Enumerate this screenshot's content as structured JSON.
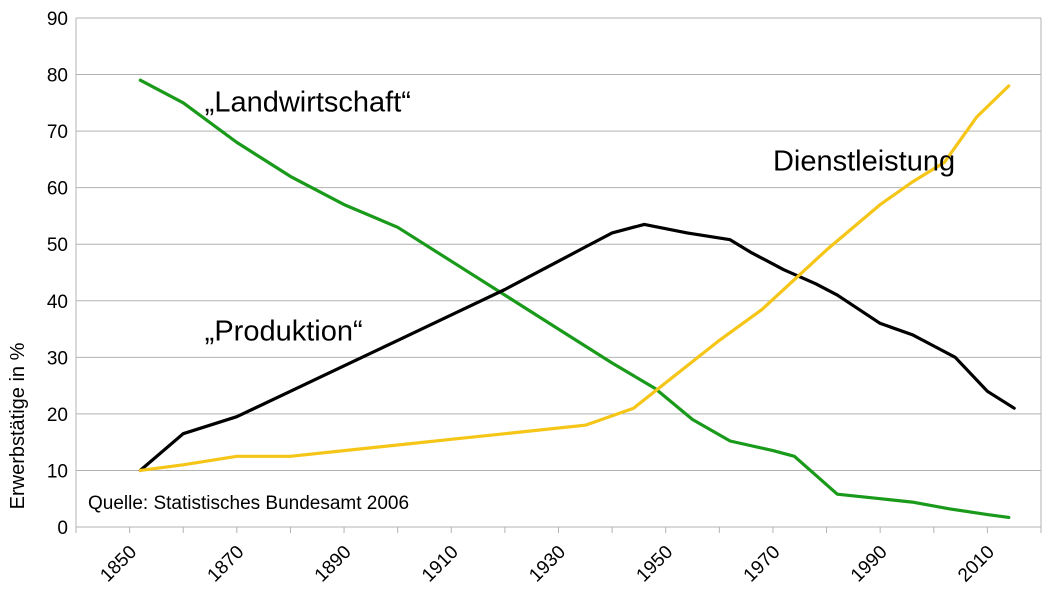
{
  "chart_data": {
    "type": "line",
    "title": "",
    "xlabel": "",
    "ylabel": "Erwerbstätige in %",
    "xlim": [
      1840,
      2020
    ],
    "ylim": [
      0,
      90
    ],
    "yticks": [
      0,
      10,
      20,
      30,
      40,
      50,
      60,
      70,
      80,
      90
    ],
    "xticks": [
      1850,
      1870,
      1890,
      1910,
      1930,
      1950,
      1970,
      1990,
      2010
    ],
    "grid": true,
    "source_note": "Quelle: Statistisches Bundesamt 2006",
    "series": [
      {
        "name": "„Landwirtschaft“",
        "color": "#1a9a1a",
        "points": [
          [
            1852,
            79
          ],
          [
            1860,
            75
          ],
          [
            1870,
            68
          ],
          [
            1880,
            62
          ],
          [
            1890,
            57
          ],
          [
            1900,
            53
          ],
          [
            1910,
            47
          ],
          [
            1920,
            41
          ],
          [
            1930,
            35
          ],
          [
            1940,
            29
          ],
          [
            1948,
            24.5
          ],
          [
            1955,
            19
          ],
          [
            1962,
            15.2
          ],
          [
            1970,
            13.5
          ],
          [
            1974,
            12.5
          ],
          [
            1982,
            5.8
          ],
          [
            1990,
            5
          ],
          [
            1996,
            4.4
          ],
          [
            2003,
            3.2
          ],
          [
            2010,
            2.2
          ],
          [
            2014,
            1.7
          ]
        ]
      },
      {
        "name": "„Produktion“",
        "color": "#000000",
        "points": [
          [
            1852,
            10
          ],
          [
            1860,
            16.5
          ],
          [
            1870,
            19.5
          ],
          [
            1880,
            24
          ],
          [
            1890,
            28.5
          ],
          [
            1900,
            33
          ],
          [
            1910,
            37.5
          ],
          [
            1920,
            42
          ],
          [
            1930,
            47
          ],
          [
            1935,
            49.5
          ],
          [
            1940,
            52
          ],
          [
            1946,
            53.5
          ],
          [
            1954,
            52
          ],
          [
            1962,
            50.8
          ],
          [
            1966,
            48.5
          ],
          [
            1972,
            45.5
          ],
          [
            1978,
            43
          ],
          [
            1982,
            41
          ],
          [
            1990,
            36
          ],
          [
            1996,
            34
          ],
          [
            2000,
            32
          ],
          [
            2004,
            30
          ],
          [
            2010,
            24
          ],
          [
            2015,
            21
          ]
        ]
      },
      {
        "name": "Dienstleistung",
        "color": "#f5c518",
        "points": [
          [
            1852,
            10
          ],
          [
            1860,
            11
          ],
          [
            1870,
            12.5
          ],
          [
            1880,
            12.5
          ],
          [
            1890,
            13.5
          ],
          [
            1900,
            14.5
          ],
          [
            1910,
            15.5
          ],
          [
            1920,
            16.5
          ],
          [
            1930,
            17.5
          ],
          [
            1935,
            18
          ],
          [
            1944,
            21
          ],
          [
            1950,
            25.5
          ],
          [
            1960,
            33
          ],
          [
            1968,
            38.5
          ],
          [
            1980,
            49
          ],
          [
            1990,
            57
          ],
          [
            1996,
            61
          ],
          [
            2002,
            64.5
          ],
          [
            2008,
            72.5
          ],
          [
            2014,
            78
          ]
        ]
      }
    ],
    "annotations": [
      {
        "text": "„Landwirtschaft“",
        "x": 1864,
        "y": 73.5
      },
      {
        "text": "Dienstleistung",
        "x": 1970,
        "y": 63
      },
      {
        "text": "„Produktion“",
        "x": 1864,
        "y": 33
      }
    ]
  }
}
